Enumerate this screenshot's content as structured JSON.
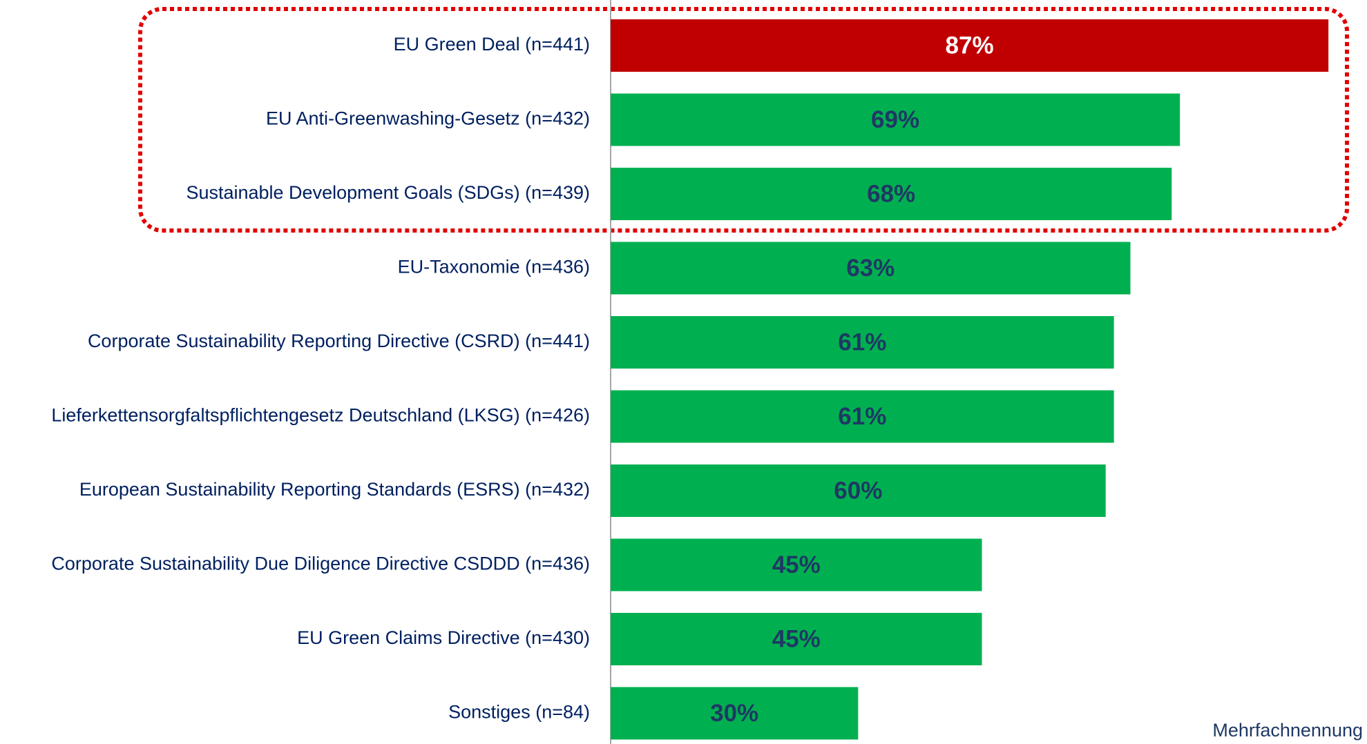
{
  "chart_data": {
    "type": "barh",
    "categories": [
      "EU Green Deal (n=441)",
      "EU Anti-Greenwashing-Gesetz (n=432)",
      "Sustainable Development Goals (SDGs) (n=439)",
      "EU-Taxonomie (n=436)",
      "Corporate Sustainability Reporting Directive (CSRD) (n=441)",
      "Lieferkettensorgfaltspflichtengesetz Deutschland (LKSG) (n=426)",
      "European Sustainability Reporting Standards (ESRS) (n=432)",
      "Corporate Sustainability Due Diligence Directive CSDDD (n=436)",
      "EU Green Claims Directive (n=430)",
      "Sonstiges (n=84)"
    ],
    "values": [
      87,
      69,
      68,
      63,
      61,
      61,
      60,
      45,
      45,
      30
    ],
    "value_labels": [
      "87%",
      "69%",
      "68%",
      "63%",
      "61%",
      "61%",
      "60%",
      "45%",
      "45%",
      "30%"
    ],
    "colors": [
      "#c00000",
      "#00b050",
      "#00b050",
      "#00b050",
      "#00b050",
      "#00b050",
      "#00b050",
      "#00b050",
      "#00b050",
      "#00b050"
    ],
    "xlim": [
      0,
      90
    ],
    "note": "Mehrfachnennung"
  }
}
